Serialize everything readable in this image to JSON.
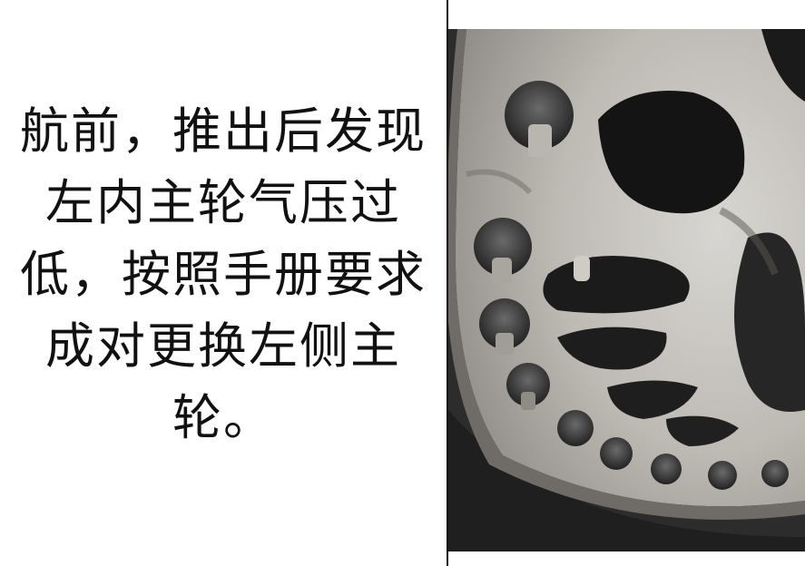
{
  "caption": {
    "lines": [
      "航前，推出后发现",
      "左内主轮气压过",
      "低，按照手册要求",
      "成对更换左侧主",
      "轮。"
    ]
  },
  "photo": {
    "subject": "wheel-hub-closeup",
    "colors": {
      "rim": "#c9c7c2",
      "tire": "#2b2b2b",
      "shadow": "#1a1a1a",
      "bolt": "#4a4a4a"
    }
  }
}
